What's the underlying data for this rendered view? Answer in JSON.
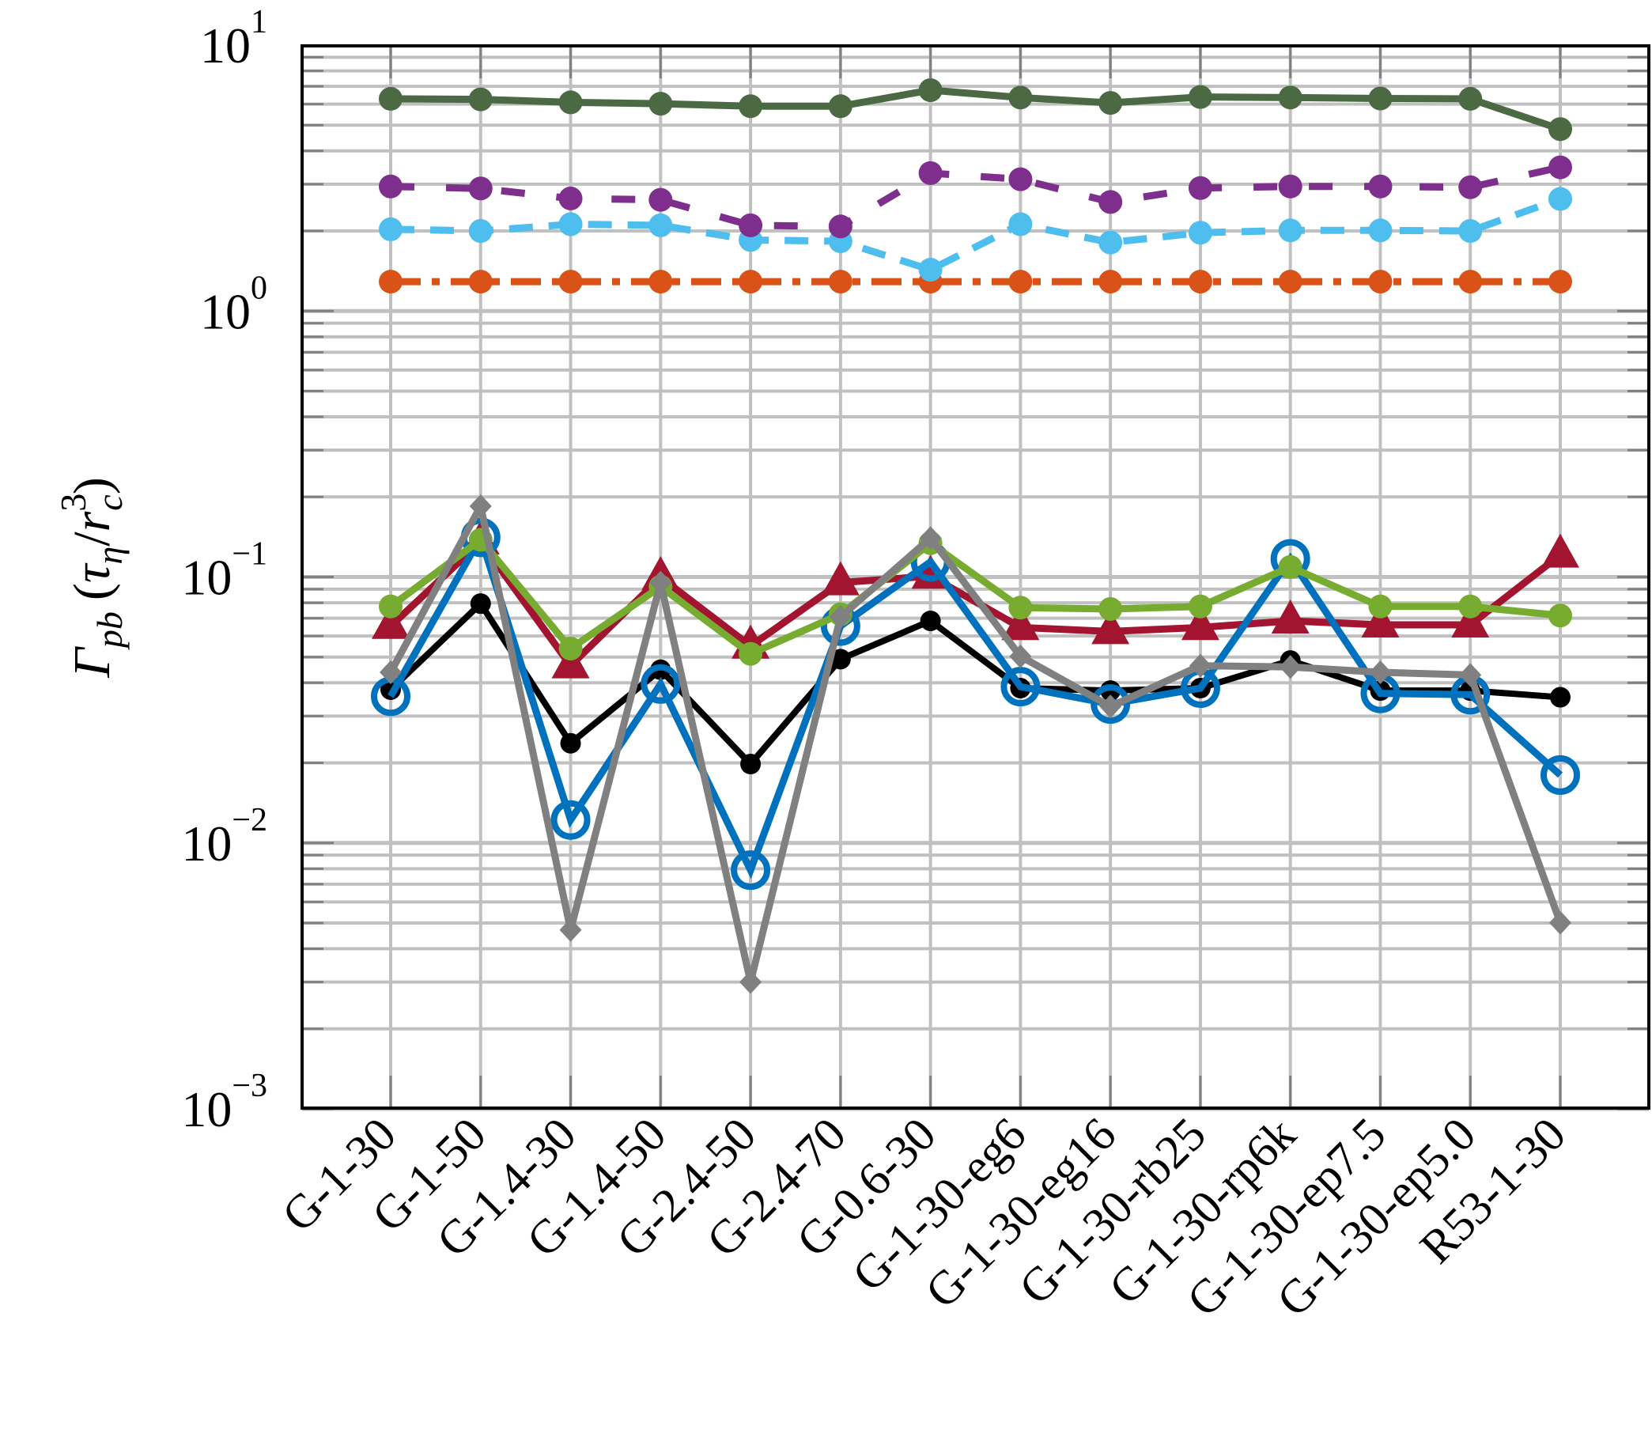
{
  "chart_data": {
    "type": "line",
    "title": "",
    "xlabel": "",
    "ylabel": "Γ_pb (τ_η / r_c^3)",
    "yscale": "log",
    "ylim": [
      0.001,
      10
    ],
    "grid": true,
    "legend": null,
    "y_ticks": [
      {
        "base": "10",
        "exp": "1",
        "value": 10
      },
      {
        "base": "10",
        "exp": "0",
        "value": 1
      },
      {
        "base": "10",
        "exp": "−1",
        "value": 0.1
      },
      {
        "base": "10",
        "exp": "−2",
        "value": 0.01
      },
      {
        "base": "10",
        "exp": "−3",
        "value": 0.001
      }
    ],
    "categories": [
      "G-1-30",
      "G-1-50",
      "G-1.4-30",
      "G-1.4-50",
      "G-2.4-50",
      "G-2.4-70",
      "G-0.6-30",
      "G-1-30-eg6",
      "G-1-30-eg16",
      "G-1-30-rb25",
      "G-1-30-rp6k",
      "G-1-30-ep7.5",
      "G-1-30-ep5.0",
      "R53-1-30"
    ],
    "series": [
      {
        "name": "series-orange",
        "color": "#D95319",
        "dash": "38,14,10,14",
        "marker": "circle",
        "values": [
          1.29,
          1.29,
          1.29,
          1.29,
          1.29,
          1.29,
          1.29,
          1.29,
          1.29,
          1.29,
          1.29,
          1.29,
          1.29,
          1.29
        ]
      },
      {
        "name": "series-cyan",
        "color": "#4DBEEE",
        "dash": "30,20",
        "marker": "circle",
        "values": [
          2.03,
          2.0,
          2.12,
          2.1,
          1.85,
          1.83,
          1.43,
          2.12,
          1.81,
          1.97,
          2.01,
          2.01,
          2.0,
          2.64
        ]
      },
      {
        "name": "series-purple",
        "color": "#7E2F8E",
        "dash": "30,40",
        "marker": "circle",
        "values": [
          2.94,
          2.89,
          2.65,
          2.62,
          2.1,
          2.08,
          3.3,
          3.13,
          2.57,
          2.9,
          2.94,
          2.94,
          2.92,
          3.47
        ]
      },
      {
        "name": "series-darkgreen",
        "color": "#4B6A44",
        "dash": "",
        "marker": "circle",
        "values": [
          6.28,
          6.25,
          6.09,
          6.02,
          5.89,
          5.89,
          6.77,
          6.35,
          6.06,
          6.38,
          6.35,
          6.3,
          6.28,
          4.83
        ]
      },
      {
        "name": "series-red",
        "color": "#A2142F",
        "dash": "",
        "marker": "triangle",
        "values": [
          0.0653,
          0.1356,
          0.0464,
          0.0997,
          0.055,
          0.0952,
          0.1008,
          0.0646,
          0.0624,
          0.0646,
          0.0684,
          0.0661,
          0.0661,
          0.121
        ]
      },
      {
        "name": "series-black",
        "color": "#000000",
        "dash": "",
        "marker": "dot",
        "values": [
          0.0377,
          0.0794,
          0.0237,
          0.0448,
          0.0198,
          0.0491,
          0.0684,
          0.0382,
          0.0374,
          0.0382,
          0.0485,
          0.0374,
          0.0374,
          0.0353
        ]
      },
      {
        "name": "series-blue",
        "color": "#0072BD",
        "dash": "",
        "marker": "open-circle",
        "values": [
          0.0356,
          0.141,
          0.0122,
          0.0396,
          0.0079,
          0.0654,
          0.114,
          0.0387,
          0.0333,
          0.0382,
          0.117,
          0.0365,
          0.0361,
          0.018
        ]
      },
      {
        "name": "series-lightgreen",
        "color": "#77AC30",
        "dash": "",
        "marker": "circle",
        "values": [
          0.0775,
          0.138,
          0.0538,
          0.092,
          0.0514,
          0.0724,
          0.134,
          0.0767,
          0.0758,
          0.0775,
          0.109,
          0.0775,
          0.0775,
          0.0716
        ]
      },
      {
        "name": "series-gray",
        "color": "#808080",
        "dash": "",
        "marker": "diamond",
        "values": [
          0.0438,
          0.1846,
          0.00471,
          0.0952,
          0.003,
          0.0708,
          0.14,
          0.0503,
          0.0326,
          0.0464,
          0.0459,
          0.0438,
          0.0428,
          0.00501
        ]
      }
    ]
  }
}
